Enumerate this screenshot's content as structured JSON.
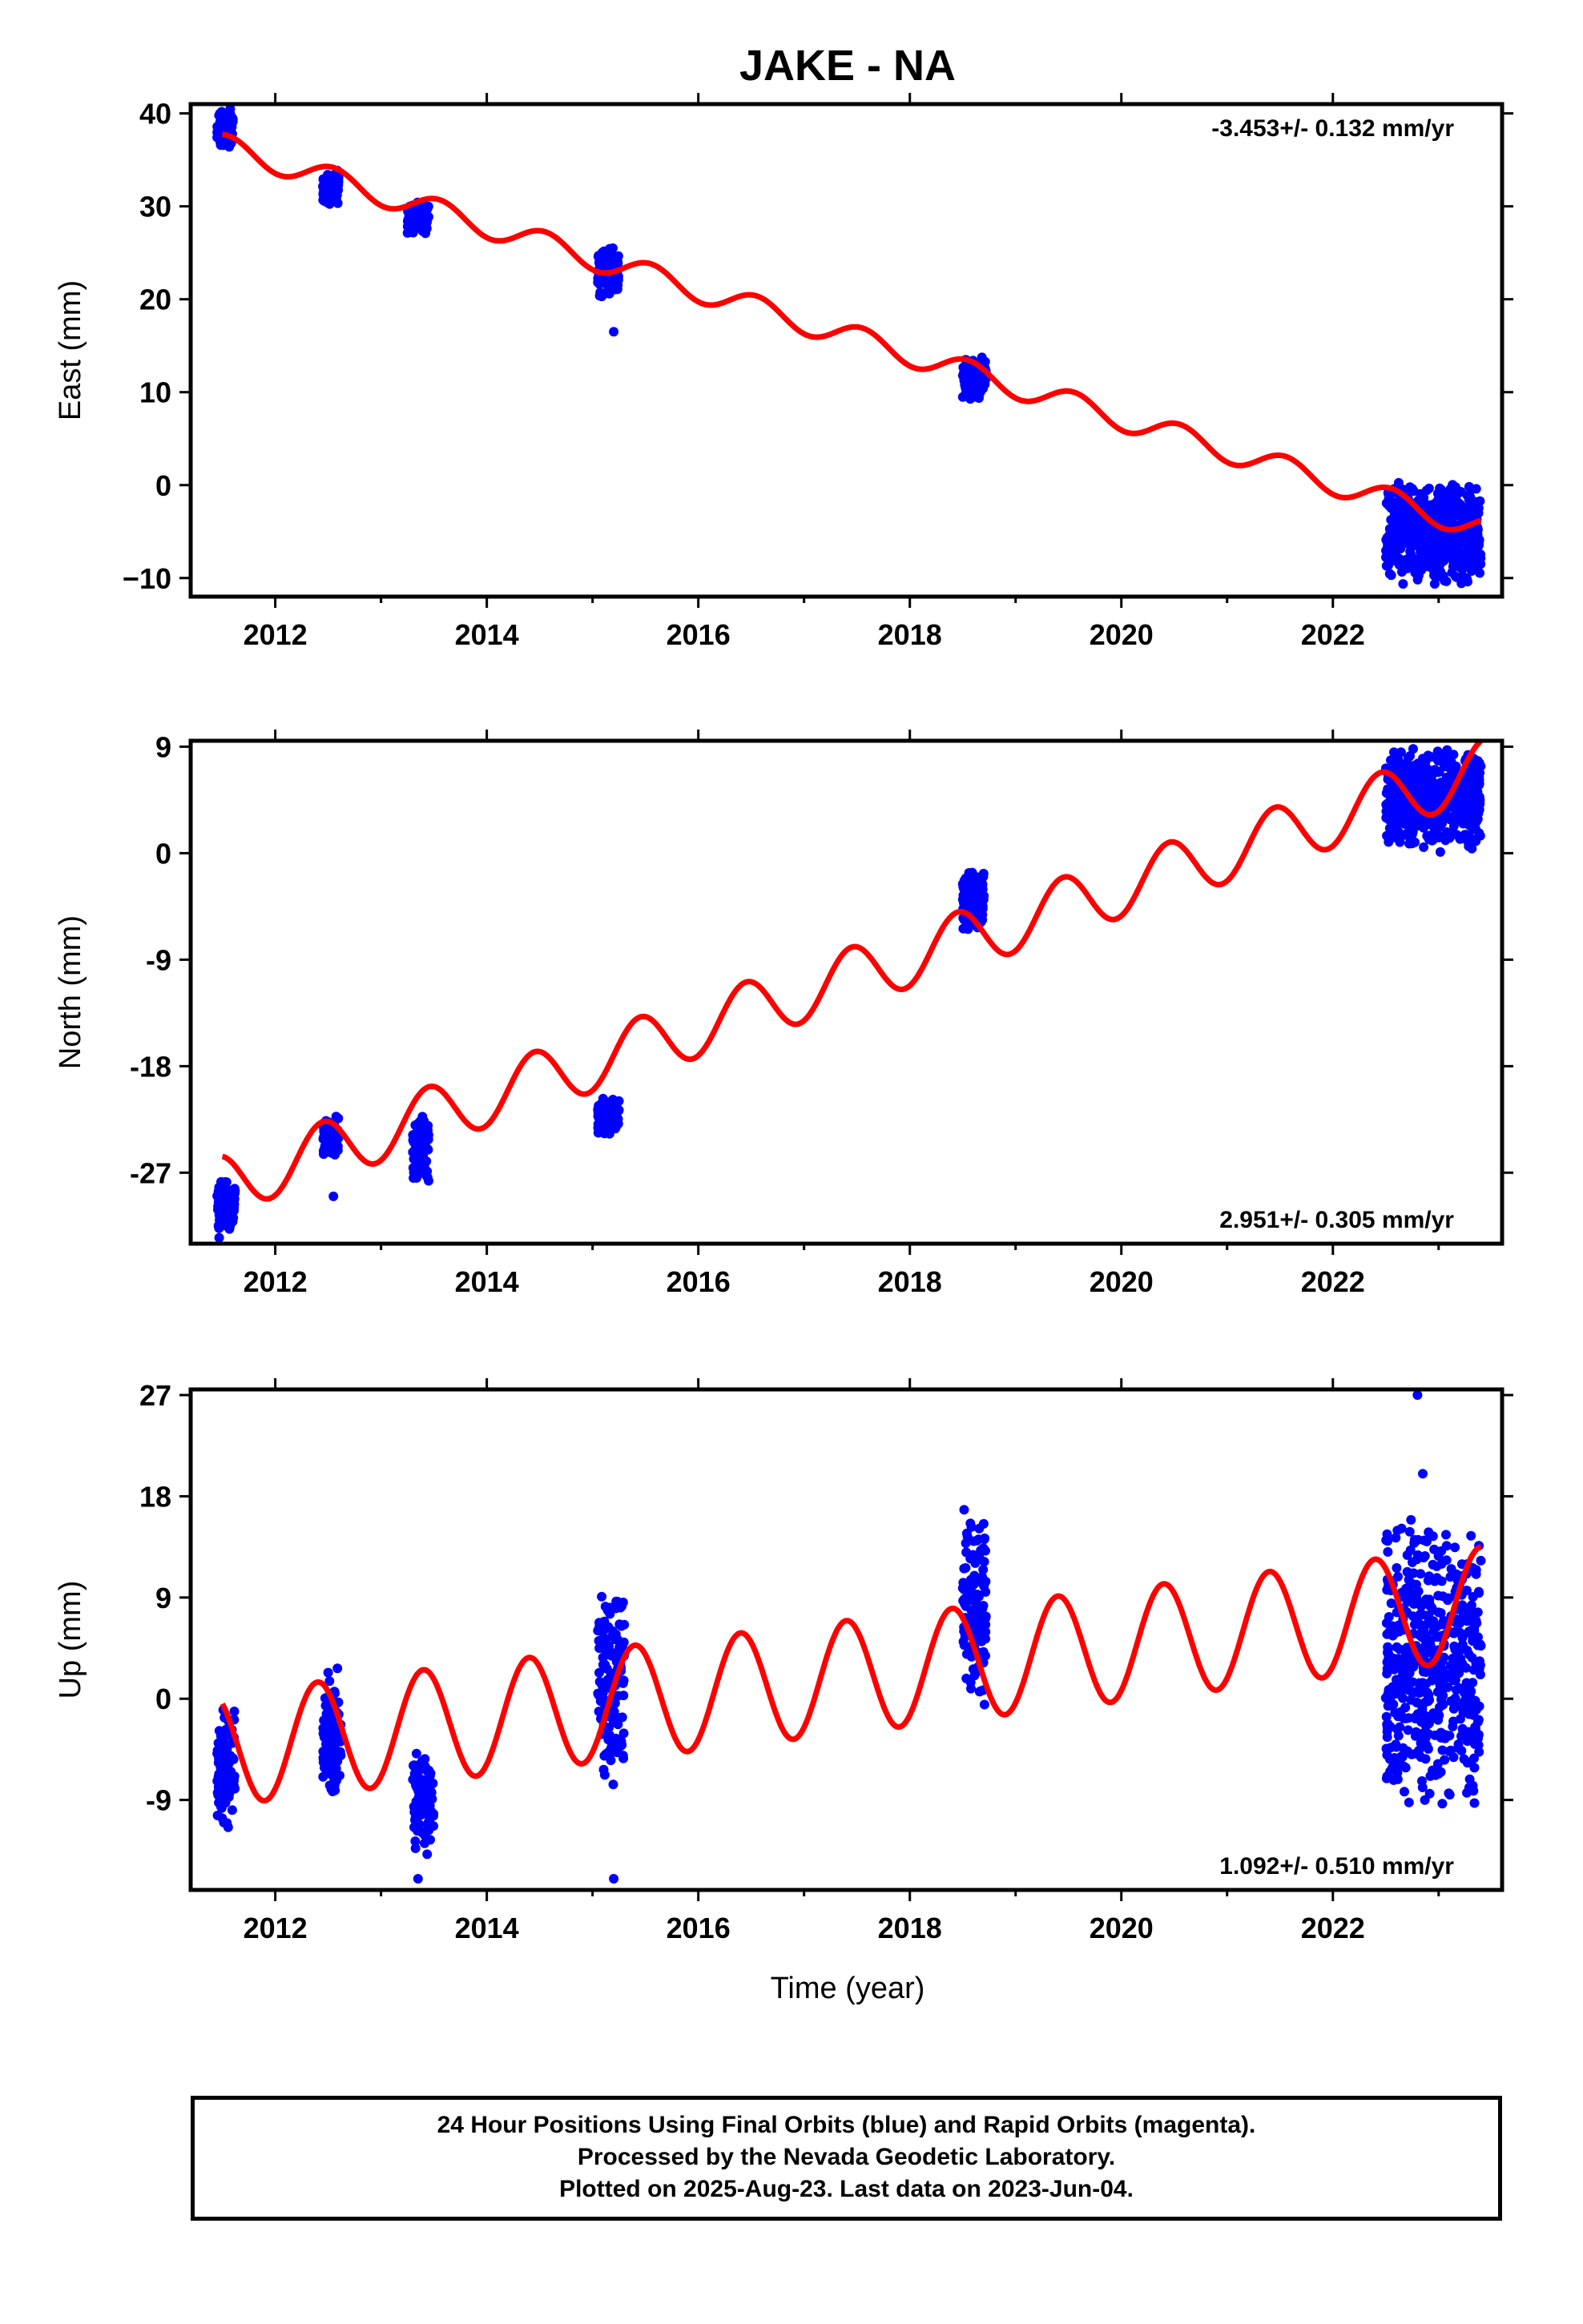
{
  "chart_data": [
    {
      "type": "scatter",
      "panel": "east",
      "title": "JAKE - NA",
      "ylabel": "East (mm)",
      "xlim": [
        2011.2,
        2023.6
      ],
      "ylim": [
        -12,
        41
      ],
      "yticks": [
        -10,
        0,
        10,
        20,
        30,
        40
      ],
      "yticklabels": [
        "−10",
        "0",
        "10",
        "20",
        "30",
        "40"
      ],
      "xticks": [
        2012,
        2014,
        2016,
        2018,
        2020,
        2022
      ],
      "xticklabels": [
        "2012",
        "2014",
        "2016",
        "2018",
        "2020",
        "2022"
      ],
      "rate_text": "-3.453+/- 0.132 mm/yr",
      "rate_position": "top-right",
      "trend": {
        "t0": 2011.5,
        "v0": 36.5,
        "slope": -3.453,
        "amp": 1.3,
        "phase": 0.3
      },
      "clusters": [
        {
          "x0": 2011.45,
          "x1": 2011.6,
          "ymin": 36,
          "ymax": 41
        },
        {
          "x0": 2012.45,
          "x1": 2012.6,
          "ymin": 30,
          "ymax": 34
        },
        {
          "x0": 2013.25,
          "x1": 2013.45,
          "ymin": 27,
          "ymax": 30.5
        },
        {
          "x0": 2015.05,
          "x1": 2015.25,
          "ymin": 20,
          "ymax": 26
        },
        {
          "x0": 2018.5,
          "x1": 2018.72,
          "ymin": 9,
          "ymax": 14
        },
        {
          "x0": 2022.5,
          "x1": 2023.4,
          "ymin": -11,
          "ymax": 0.5
        }
      ],
      "outliers": [
        {
          "x": 2015.2,
          "y": 16.5
        }
      ]
    },
    {
      "type": "scatter",
      "panel": "north",
      "ylabel": "North (mm)",
      "xlim": [
        2011.2,
        2023.6
      ],
      "ylim": [
        -33,
        9.5
      ],
      "yticks": [
        -27,
        -18,
        -9,
        0,
        9
      ],
      "yticklabels": [
        "-27",
        "-18",
        "-9",
        "0",
        "9"
      ],
      "xticks": [
        2012,
        2014,
        2016,
        2018,
        2020,
        2022
      ],
      "xticklabels": [
        "2012",
        "2014",
        "2016",
        "2018",
        "2020",
        "2022"
      ],
      "rate_text": "2.951+/- 0.305 mm/yr",
      "rate_position": "bottom-right",
      "trend": {
        "t0": 2011.5,
        "v0": -28,
        "slope": 2.951,
        "amp": 2.5,
        "phase": 0.2
      },
      "clusters": [
        {
          "x0": 2011.45,
          "x1": 2011.62,
          "ymin": -32,
          "ymax": -27.5
        },
        {
          "x0": 2012.45,
          "x1": 2012.6,
          "ymin": -26,
          "ymax": -22
        },
        {
          "x0": 2013.3,
          "x1": 2013.45,
          "ymin": -28,
          "ymax": -22
        },
        {
          "x0": 2015.05,
          "x1": 2015.25,
          "ymin": -24,
          "ymax": -20.5
        },
        {
          "x0": 2018.5,
          "x1": 2018.7,
          "ymin": -7,
          "ymax": -1
        },
        {
          "x0": 2022.5,
          "x1": 2023.4,
          "ymin": 0,
          "ymax": 9
        }
      ],
      "outliers": [
        {
          "x": 2012.55,
          "y": -29
        },
        {
          "x": 2011.47,
          "y": -32.5
        }
      ]
    },
    {
      "type": "scatter",
      "panel": "up",
      "ylabel": "Up (mm)",
      "xlabel": "Time (year)",
      "xlim": [
        2011.2,
        2023.6
      ],
      "ylim": [
        -17,
        27.5
      ],
      "yticks": [
        -9,
        0,
        9,
        18,
        27
      ],
      "yticklabels": [
        "-9",
        "0",
        "9",
        "18",
        "27"
      ],
      "xticks": [
        2012,
        2014,
        2016,
        2018,
        2020,
        2022
      ],
      "xticklabels": [
        "2012",
        "2014",
        "2016",
        "2018",
        "2020",
        "2022"
      ],
      "rate_text": "1.092+/- 0.510 mm/yr",
      "rate_position": "bottom-right",
      "trend": {
        "t0": 2011.5,
        "v0": -4.5,
        "slope": 1.092,
        "amp": 5.0,
        "phase": 0.15
      },
      "clusters": [
        {
          "x0": 2011.45,
          "x1": 2011.62,
          "ymin": -12,
          "ymax": 0
        },
        {
          "x0": 2012.45,
          "x1": 2012.62,
          "ymin": -10,
          "ymax": 3
        },
        {
          "x0": 2013.3,
          "x1": 2013.5,
          "ymin": -14,
          "ymax": -4
        },
        {
          "x0": 2015.05,
          "x1": 2015.3,
          "ymin": -8,
          "ymax": 10
        },
        {
          "x0": 2018.5,
          "x1": 2018.72,
          "ymin": -1,
          "ymax": 17
        },
        {
          "x0": 2022.5,
          "x1": 2023.4,
          "ymin": -11,
          "ymax": 17
        }
      ],
      "outliers": [
        {
          "x": 2015.2,
          "y": -16
        },
        {
          "x": 2022.8,
          "y": 27
        },
        {
          "x": 2022.85,
          "y": 20
        },
        {
          "x": 2013.35,
          "y": -16
        }
      ]
    }
  ],
  "caption": {
    "line1": "24 Hour Positions Using Final Orbits (blue) and Rapid Orbits (magenta).",
    "line2": "Processed by the Nevada Geodetic Laboratory.",
    "line3": "Plotted on 2025-Aug-23. Last data on 2023-Jun-04."
  },
  "colors": {
    "points": "#0000ff",
    "trend": "#ff0000",
    "axes": "#000000"
  }
}
